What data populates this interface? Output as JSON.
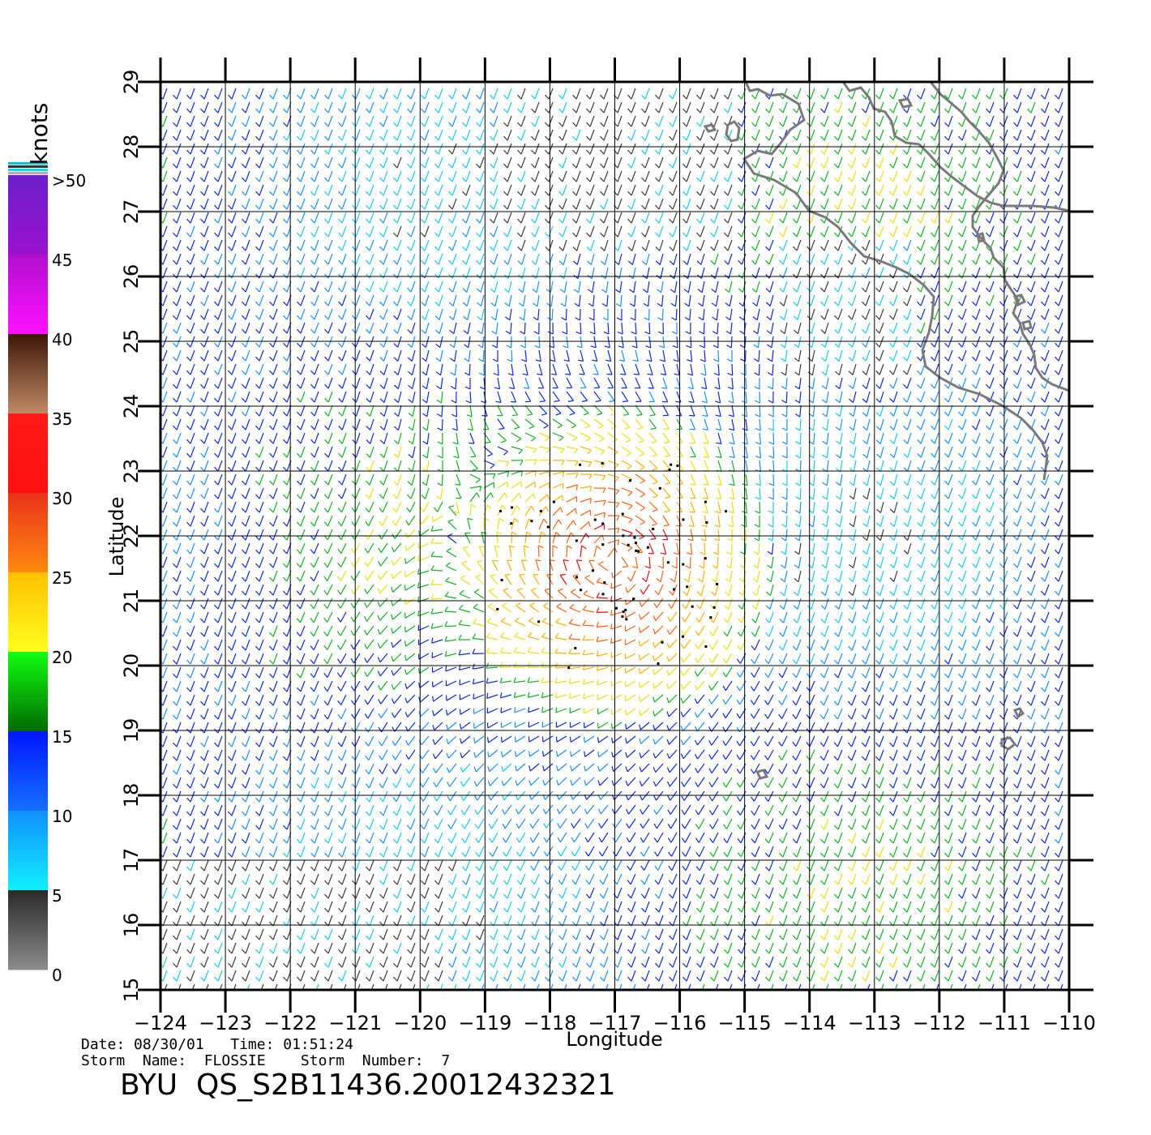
{
  "map": {
    "xlabel": "Longitude",
    "ylabel": "Latitude",
    "lon_range": [
      -124,
      -110
    ],
    "lat_range": [
      15,
      29
    ],
    "lon_ticks": [
      "−124",
      "−123",
      "−122",
      "−121",
      "−120",
      "−119",
      "−118",
      "−117",
      "−116",
      "−115",
      "−114",
      "−113",
      "−112",
      "−111",
      "−110"
    ],
    "lat_ticks": [
      "15",
      "16",
      "17",
      "18",
      "19",
      "20",
      "21",
      "22",
      "23",
      "24",
      "25",
      "26",
      "27",
      "28",
      "29"
    ],
    "grid": true,
    "coastline_color": "#7a7a7a",
    "storm_center": {
      "lon": -117.0,
      "lat": 21.6
    }
  },
  "colorbar": {
    "title": "knots",
    "labels": [
      ">50",
      "45",
      "40",
      "35",
      "30",
      "25",
      "20",
      "15",
      "10",
      "5",
      "0"
    ],
    "bands": [
      {
        "from": 45,
        "to": 50,
        "colors": [
          "#6a1fc9",
          "#9b12d0"
        ]
      },
      {
        "from": 40,
        "to": 45,
        "colors": [
          "#b10fcf",
          "#ff10ff"
        ]
      },
      {
        "from": 35,
        "to": 40,
        "colors": [
          "#3e1708",
          "#c08a66"
        ]
      },
      {
        "from": 30,
        "to": 35,
        "colors": [
          "#ff1a1a",
          "#ff1010"
        ]
      },
      {
        "from": 25,
        "to": 30,
        "colors": [
          "#e83218",
          "#ff8a10"
        ]
      },
      {
        "from": 20,
        "to": 25,
        "colors": [
          "#ffc000",
          "#ffff20"
        ]
      },
      {
        "from": 15,
        "to": 20,
        "colors": [
          "#12ff12",
          "#006a00"
        ]
      },
      {
        "from": 10,
        "to": 15,
        "colors": [
          "#0016ff",
          "#1470ff"
        ]
      },
      {
        "from": 5,
        "to": 10,
        "colors": [
          "#1090ff",
          "#10f0ff"
        ]
      },
      {
        "from": 0,
        "to": 5,
        "colors": [
          "#2a2a2a",
          "#8c8c8c"
        ]
      }
    ]
  },
  "footer": {
    "date_line": "Date: 08/30/01   Time: 01:51:24",
    "storm_line": "Storm  Name:  FLOSSIE    Storm  Number:  7",
    "product": "BYU  QS_S2B11436.20012432321"
  }
}
